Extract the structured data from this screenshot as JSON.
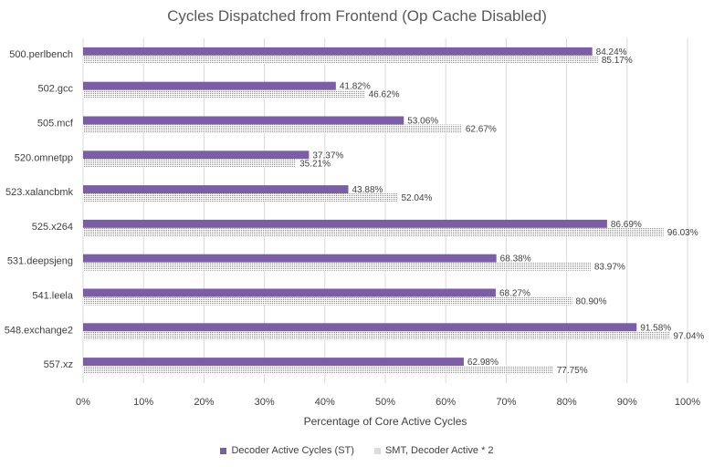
{
  "chart_data": {
    "type": "bar",
    "orientation": "horizontal",
    "title": "Cycles Dispatched from Frontend (Op Cache Disabled)",
    "xlabel": "Percentage of Core Active Cycles",
    "ylabel": "",
    "categories": [
      "500.perlbench",
      "502.gcc",
      "505.mcf",
      "520.omnetpp",
      "523.xalancbmk",
      "525.x264",
      "531.deepsjeng",
      "541.leela",
      "548.exchange2",
      "557.xz"
    ],
    "series": [
      {
        "name": "Decoder Active Cycles (ST)",
        "values": [
          84.24,
          41.82,
          53.06,
          37.37,
          43.88,
          86.69,
          68.38,
          68.27,
          91.58,
          62.98
        ],
        "labels": [
          "84.24%",
          "41.82%",
          "53.06%",
          "37.37%",
          "43.88%",
          "86.69%",
          "68.38%",
          "68.27%",
          "91.58%",
          "62.98%"
        ],
        "color": "#7b5ea7",
        "fill": "solid"
      },
      {
        "name": "SMT, Decoder Active * 2",
        "values": [
          85.17,
          46.62,
          62.67,
          35.21,
          52.04,
          96.03,
          83.97,
          80.9,
          97.04,
          77.75
        ],
        "labels": [
          "85.17%",
          "46.62%",
          "62.67%",
          "35.21%",
          "52.04%",
          "96.03%",
          "83.97%",
          "80.90%",
          "97.04%",
          "77.75%"
        ],
        "color": "#8a8a8a",
        "fill": "dotted"
      }
    ],
    "xlim": [
      0,
      100
    ],
    "xticks": [
      "0%",
      "10%",
      "20%",
      "30%",
      "40%",
      "50%",
      "60%",
      "70%",
      "80%",
      "90%",
      "100%"
    ],
    "grid": true,
    "legend_position": "bottom"
  }
}
